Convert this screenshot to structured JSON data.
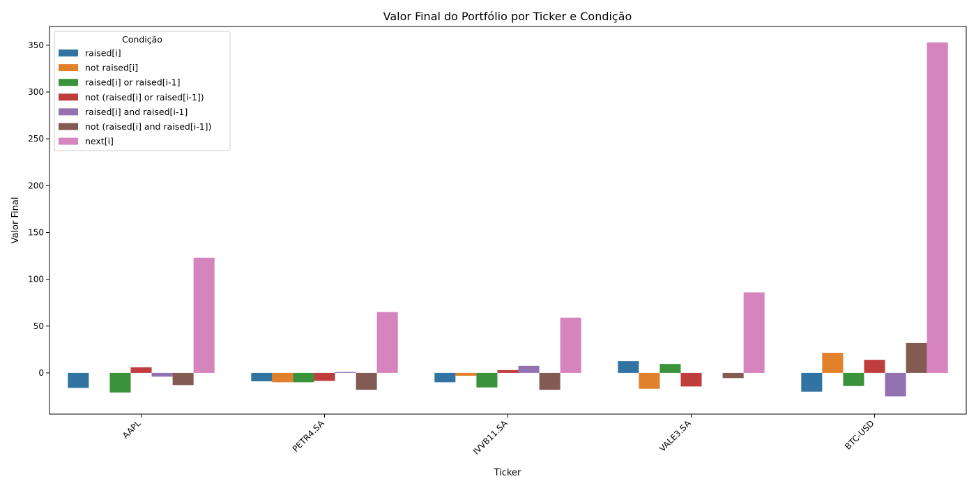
{
  "chart_data": {
    "type": "bar",
    "title": "Valor Final do Portfólio por Ticker e Condição",
    "xlabel": "Ticker",
    "ylabel": "Valor Final",
    "categories": [
      "AAPL",
      "PETR4.SA",
      "IVVB11.SA",
      "VALE3.SA",
      "BTC-USD"
    ],
    "ylim": [
      -44,
      370
    ],
    "yticks": [
      0,
      50,
      100,
      150,
      200,
      250,
      300,
      350
    ],
    "grid": false,
    "legend": {
      "title": "Condição",
      "placement": "top-left"
    },
    "series": [
      {
        "name": "raised[i]",
        "color": "#3274a1",
        "values": [
          -16,
          -9,
          -10,
          12.5,
          -20
        ]
      },
      {
        "name": "not raised[i]",
        "color": "#e1812c",
        "values": [
          0,
          -10,
          -3,
          -17,
          21.5
        ]
      },
      {
        "name": "raised[i] or raised[i-1]",
        "color": "#3a923a",
        "values": [
          -21,
          -10,
          -15.5,
          9.5,
          -14
        ]
      },
      {
        "name": "not (raised[i] or raised[i-1])",
        "color": "#c03d3e",
        "values": [
          6,
          -8.5,
          3,
          -14.5,
          14
        ]
      },
      {
        "name": "raised[i] and raised[i-1]",
        "color": "#9372b2",
        "values": [
          -4,
          1,
          7.5,
          0,
          -25
        ]
      },
      {
        "name": "not (raised[i] and raised[i-1])",
        "color": "#845b53",
        "values": [
          -13,
          -18,
          -18,
          -5.5,
          32
        ]
      },
      {
        "name": "next[i]",
        "color": "#d684bd",
        "values": [
          123,
          65,
          59,
          86,
          353
        ]
      }
    ]
  }
}
